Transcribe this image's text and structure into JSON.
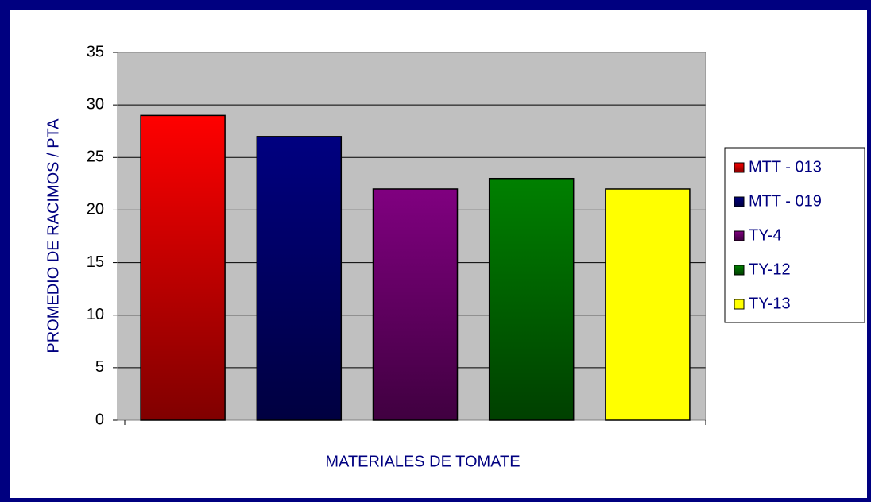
{
  "chart_data": {
    "type": "bar",
    "x_label": "MATERIALES DE TOMATE",
    "y_label": "PROMEDIO DE RACIMOS / PTA",
    "categories": [
      "MTT - 013",
      "MTT - 019",
      "TY-4",
      "TY-12",
      "TY-13"
    ],
    "values": [
      29,
      27,
      22,
      23,
      22
    ],
    "colors": [
      "#ff0000",
      "#000080",
      "#800080",
      "#008000",
      "#ffff00"
    ],
    "colors_end": [
      "#800000",
      "#000040",
      "#400040",
      "#004000",
      "#ffff00"
    ],
    "ylim": [
      0,
      35
    ],
    "yticks": [
      0,
      5,
      10,
      15,
      20,
      25,
      30,
      35
    ],
    "grid": true,
    "legend": "right"
  }
}
